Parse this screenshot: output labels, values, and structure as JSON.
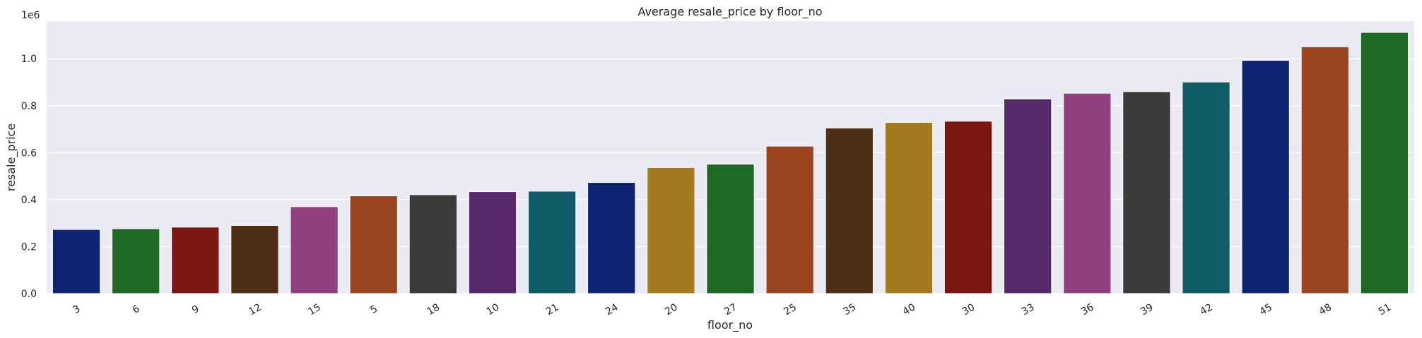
{
  "chart_data": {
    "type": "bar",
    "title": "Average resale_price by floor_no",
    "xlabel": "floor_no",
    "ylabel": "resale_price",
    "y_offset_label": "1e6",
    "categories": [
      "3",
      "6",
      "9",
      "12",
      "15",
      "5",
      "18",
      "10",
      "21",
      "24",
      "20",
      "27",
      "25",
      "35",
      "40",
      "30",
      "33",
      "36",
      "39",
      "42",
      "45",
      "48",
      "51"
    ],
    "values": [
      0.273,
      0.276,
      0.283,
      0.29,
      0.37,
      0.416,
      0.421,
      0.434,
      0.436,
      0.473,
      0.537,
      0.551,
      0.628,
      0.705,
      0.729,
      0.734,
      0.829,
      0.853,
      0.86,
      0.901,
      0.993,
      1.051,
      1.112
    ],
    "ylim": [
      0,
      1.16
    ],
    "yticks": [
      0.0,
      0.2,
      0.4,
      0.6,
      0.8,
      1.0
    ],
    "ytick_labels": [
      "0.0",
      "0.2",
      "0.4",
      "0.6",
      "0.8",
      "1.0"
    ],
    "grid": true,
    "colors": [
      "#0c2472",
      "#1e6a24",
      "#7b1612",
      "#4f2e16",
      "#913f7f",
      "#9a451f",
      "#3b3b3b",
      "#56276a",
      "#0f5b66",
      "#0c2472",
      "#a27b21",
      "#1e6a24",
      "#9a451f",
      "#4f2e16",
      "#a27b21",
      "#7b1612",
      "#56276a",
      "#913f7f",
      "#3b3b3b",
      "#0f5b66",
      "#0c2472",
      "#9a451f",
      "#1e6a24"
    ],
    "background": "#eaeaf2"
  }
}
